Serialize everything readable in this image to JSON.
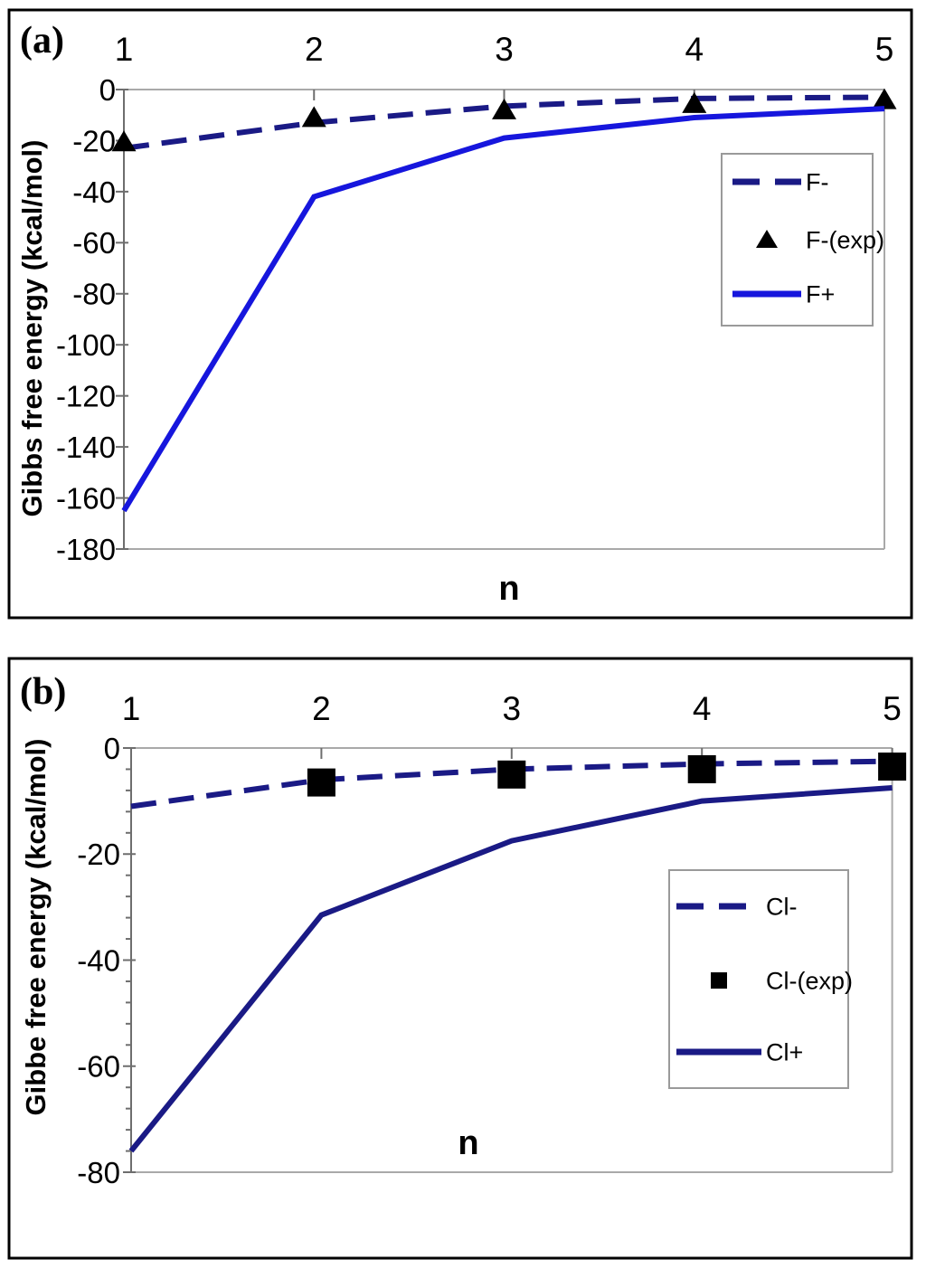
{
  "figure_title": "Gibbs free energy of stepwise hydration, two-panel figure",
  "panel_labels": [
    "(a)",
    "(b)"
  ],
  "colors": {
    "navy": "#1a1a85",
    "bright_blue": "#1616dd",
    "marker_black": "#000000",
    "frame_gray": "#a9a9a9",
    "tick_gray": "#6e6e6e",
    "panel_border": "#000000",
    "legend_border": "#9a9a9a"
  },
  "chart_data": [
    {
      "type": "line",
      "panel_label": "(a)",
      "x": [
        1,
        2,
        3,
        4,
        5
      ],
      "xtick_labels": [
        "1",
        "2",
        "3",
        "4",
        "5"
      ],
      "xlabel": "n",
      "ylabel": "Gibbs free energy (kcal/mol)",
      "ylim": [
        -180,
        0
      ],
      "ytick_step": 20,
      "ytick_labels": [
        "0",
        "-20",
        "-40",
        "-60",
        "-80",
        "-100",
        "-120",
        "-140",
        "-160",
        "-180"
      ],
      "grid": false,
      "legend_position": "right-middle",
      "legend_entries": [
        "F-",
        "F-(exp)",
        "F+"
      ],
      "series": [
        {
          "name": "F-",
          "style": "dashed",
          "marker": "none",
          "color": "#1a1a85",
          "values": [
            -23,
            -13,
            -6.5,
            -3.5,
            -3
          ]
        },
        {
          "name": "F-(exp)",
          "style": "scatter",
          "marker": "triangle",
          "color": "#000000",
          "values": [
            -20.5,
            -11,
            -8,
            -5.5,
            -4
          ]
        },
        {
          "name": "F+",
          "style": "solid",
          "marker": "none",
          "color": "#1616dd",
          "values": [
            -165,
            -42,
            -19,
            -11,
            -7.5
          ]
        }
      ]
    },
    {
      "type": "line",
      "panel_label": "(b)",
      "x": [
        1,
        2,
        3,
        4,
        5
      ],
      "xtick_labels": [
        "1",
        "2",
        "3",
        "4",
        "5"
      ],
      "xlabel": "n",
      "ylabel": "Gibbe free energy (kcal/mol)",
      "ylim": [
        -80,
        0
      ],
      "ytick_step": 20,
      "ytick_minor_step": 4,
      "ytick_labels": [
        "0",
        "-20",
        "-40",
        "-60",
        "-80"
      ],
      "grid": false,
      "legend_position": "right-middle",
      "legend_entries": [
        "Cl-",
        "Cl-(exp)",
        "Cl+"
      ],
      "series": [
        {
          "name": "Cl-",
          "style": "dashed",
          "marker": "none",
          "color": "#1a1a85",
          "values": [
            -11,
            -6,
            -4,
            -3,
            -2.5
          ]
        },
        {
          "name": "Cl-(exp)",
          "style": "scatter",
          "marker": "square",
          "color": "#000000",
          "values": [
            null,
            -6.5,
            -5,
            -4,
            -3.5
          ]
        },
        {
          "name": "Cl+",
          "style": "solid",
          "marker": "none",
          "color": "#1a1a85",
          "values": [
            -76,
            -31.5,
            -17.5,
            -10,
            -7.5
          ]
        }
      ]
    }
  ]
}
